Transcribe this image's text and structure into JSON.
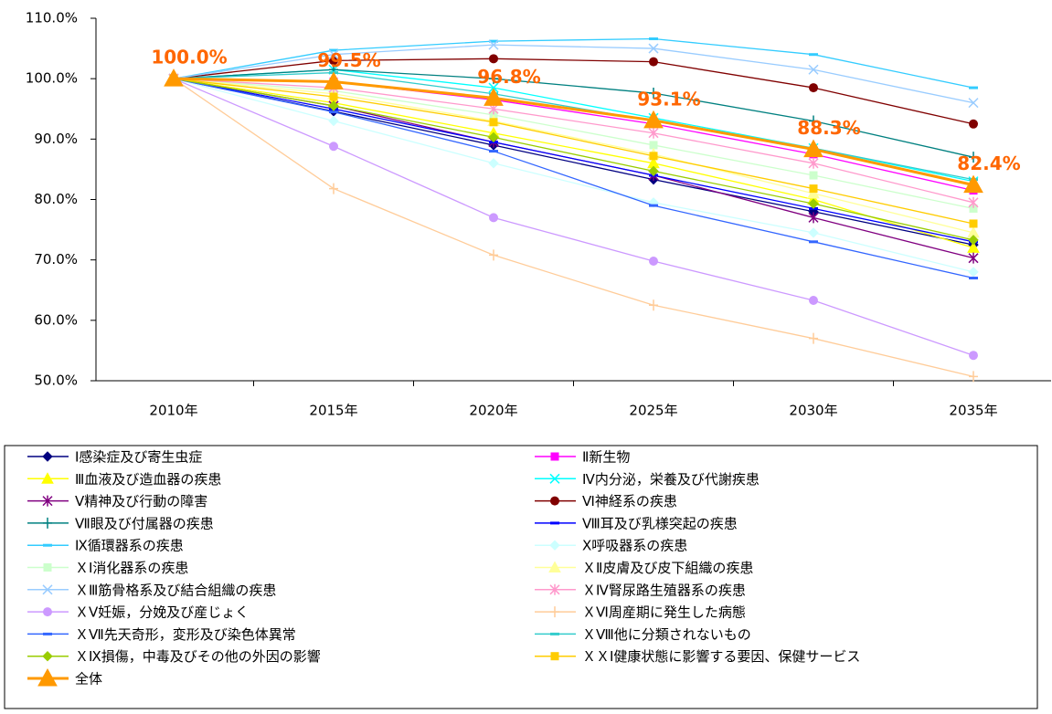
{
  "chart_data": {
    "type": "line",
    "categories": [
      "2010年",
      "2015年",
      "2020年",
      "2025年",
      "2030年",
      "2035年"
    ],
    "ylim": [
      50,
      110
    ],
    "yticks": [
      {
        "value": 50,
        "label": "50.0%"
      },
      {
        "value": 60,
        "label": "60.0%"
      },
      {
        "value": 70,
        "label": "70.0%"
      },
      {
        "value": 80,
        "label": "80.0%"
      },
      {
        "value": 90,
        "label": "90.0%"
      },
      {
        "value": 100,
        "label": "100.0%"
      },
      {
        "value": 110,
        "label": "110.0%"
      }
    ],
    "grid": false,
    "series": [
      {
        "name": "Ⅰ感染症及び寄生虫症",
        "color": "#000080",
        "marker": "diamond",
        "values": [
          100,
          94.6,
          89.0,
          83.3,
          78.0,
          72.5
        ]
      },
      {
        "name": "Ⅱ新生物",
        "color": "#ff00ff",
        "marker": "square",
        "values": [
          100,
          99.5,
          96.5,
          92.5,
          87.5,
          81.5
        ]
      },
      {
        "name": "Ⅲ血液及び造血器の疾患",
        "color": "#ffff00",
        "marker": "triangle",
        "values": [
          100,
          96.0,
          91.0,
          86.0,
          80.0,
          72.0
        ]
      },
      {
        "name": "Ⅳ内分泌，栄養及び代謝疾患",
        "color": "#00ffff",
        "marker": "x",
        "values": [
          100,
          101.5,
          98.5,
          93.5,
          88.5,
          83.0
        ]
      },
      {
        "name": "Ⅴ精神及び行動の障害",
        "color": "#800080",
        "marker": "star",
        "values": [
          100,
          95.5,
          89.5,
          84.0,
          77.0,
          70.3
        ]
      },
      {
        "name": "Ⅵ神経系の疾患",
        "color": "#800000",
        "marker": "circle",
        "values": [
          100,
          103.0,
          103.3,
          102.8,
          98.5,
          92.5
        ]
      },
      {
        "name": "Ⅶ眼及び付属器の疾患",
        "color": "#008080",
        "marker": "plus",
        "values": [
          100,
          101.5,
          100.0,
          97.6,
          93.0,
          87.0
        ]
      },
      {
        "name": "Ⅷ耳及び乳様突起の疾患",
        "color": "#0000ff",
        "marker": "dash",
        "values": [
          100,
          95.0,
          89.5,
          84.0,
          78.5,
          73.0
        ]
      },
      {
        "name": "Ⅸ循環器系の疾患",
        "color": "#33ccff",
        "marker": "dash",
        "values": [
          100,
          104.7,
          106.2,
          106.6,
          104.0,
          98.5
        ]
      },
      {
        "name": "Ⅹ呼吸器系の疾患",
        "color": "#ccffff",
        "marker": "diamond",
        "values": [
          100,
          93.0,
          86.0,
          79.5,
          74.5,
          68.0
        ]
      },
      {
        "name": "ＸⅠ消化器系の疾患",
        "color": "#ccffcc",
        "marker": "square",
        "values": [
          100,
          98.0,
          94.0,
          89.0,
          84.0,
          78.5
        ]
      },
      {
        "name": "ＸⅡ皮膚及び皮下組織の疾患",
        "color": "#ffff99",
        "marker": "triangle",
        "values": [
          100,
          97.5,
          93.0,
          87.5,
          81.0,
          74.5
        ]
      },
      {
        "name": "ＸⅢ筋骨格系及び結合組織の疾患",
        "color": "#99ccff",
        "marker": "x",
        "values": [
          100,
          104.0,
          105.6,
          105.0,
          101.5,
          96.0
        ]
      },
      {
        "name": "ＸⅣ腎尿路生殖器系の疾患",
        "color": "#ff99cc",
        "marker": "star",
        "values": [
          100,
          98.5,
          95.0,
          91.0,
          86.0,
          79.5
        ]
      },
      {
        "name": "ＸⅤ妊娠，分娩及び産じょく",
        "color": "#cc99ff",
        "marker": "circle",
        "values": [
          100,
          88.8,
          77.0,
          69.8,
          63.3,
          54.2
        ]
      },
      {
        "name": "ＸⅥ周産期に発生した病態",
        "color": "#ffcc99",
        "marker": "plus",
        "values": [
          100,
          81.8,
          70.8,
          62.5,
          57.0,
          50.7
        ]
      },
      {
        "name": "ＸⅦ先天奇形，変形及び染色体異常",
        "color": "#3366ff",
        "marker": "dash",
        "values": [
          100,
          94.5,
          88.0,
          79.0,
          73.0,
          67.0
        ]
      },
      {
        "name": "ＸⅧ他に分類されないもの",
        "color": "#33cccc",
        "marker": "dash",
        "values": [
          100,
          101.0,
          97.5,
          93.0,
          88.5,
          83.3
        ]
      },
      {
        "name": "ＸⅨ損傷，中毒及びその他の外因の影響",
        "color": "#99cc00",
        "marker": "diamond",
        "values": [
          100,
          95.5,
          90.3,
          84.7,
          79.3,
          73.3
        ]
      },
      {
        "name": "ＸＸⅠ健康状態に影響する要因、保健サービス",
        "color": "#ffcc00",
        "marker": "square",
        "values": [
          100,
          97.0,
          92.8,
          87.2,
          81.8,
          76.0
        ]
      },
      {
        "name": "全体",
        "color": "#ff9900",
        "marker": "bigtriangle",
        "width": 3,
        "values": [
          100,
          99.5,
          96.8,
          93.1,
          88.3,
          82.4
        ],
        "value_labels": [
          "100.0%",
          "99.5%",
          "96.8%",
          "93.1%",
          "88.3%",
          "82.4%"
        ]
      }
    ]
  }
}
